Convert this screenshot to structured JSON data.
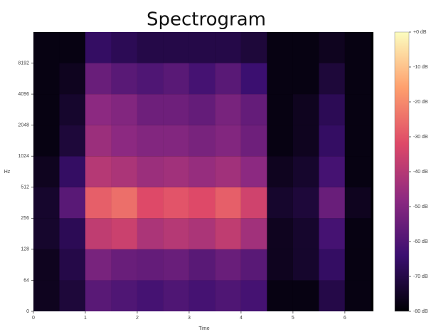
{
  "chart_data": {
    "type": "heatmap",
    "title": "Spectrogram",
    "x_label": "Time",
    "y_label": "Hz",
    "time_bins": [
      0,
      0.5,
      1,
      1.5,
      2,
      2.5,
      3,
      3.5,
      4,
      4.5,
      5,
      5.5,
      6,
      6.5
    ],
    "freq_bins": [
      0,
      64,
      128,
      256,
      512,
      1024,
      2048,
      4096,
      8192,
      16384
    ],
    "z": [
      [
        -76,
        -72,
        -58,
        -60,
        -62,
        -60,
        -62,
        -60,
        -62,
        -78,
        -78,
        -70,
        -78
      ],
      [
        -76,
        -70,
        -52,
        -55,
        -56,
        -55,
        -58,
        -55,
        -58,
        -76,
        -74,
        -66,
        -78
      ],
      [
        -74,
        -68,
        -38,
        -36,
        -42,
        -40,
        -42,
        -38,
        -44,
        -76,
        -74,
        -62,
        -78
      ],
      [
        -74,
        -58,
        -28,
        -25,
        -32,
        -30,
        -32,
        -28,
        -35,
        -74,
        -72,
        -55,
        -76
      ],
      [
        -76,
        -66,
        -40,
        -42,
        -45,
        -44,
        -46,
        -44,
        -48,
        -76,
        -74,
        -62,
        -78
      ],
      [
        -78,
        -72,
        -45,
        -48,
        -50,
        -50,
        -52,
        -50,
        -54,
        -78,
        -76,
        -66,
        -78
      ],
      [
        -78,
        -74,
        -48,
        -50,
        -54,
        -54,
        -56,
        -52,
        -56,
        -78,
        -76,
        -68,
        -78
      ],
      [
        -78,
        -76,
        -55,
        -58,
        -60,
        -58,
        -62,
        -58,
        -64,
        -78,
        -78,
        -72,
        -78
      ],
      [
        -78,
        -78,
        -66,
        -68,
        -70,
        -70,
        -70,
        -70,
        -72,
        -78,
        -78,
        -76,
        -78
      ]
    ],
    "xlim": [
      0,
      6.55
    ],
    "xticks": [
      0,
      1,
      2,
      3,
      4,
      5,
      6
    ],
    "ylim": [
      0,
      16384
    ],
    "yticks": [
      0,
      64,
      128,
      256,
      512,
      1024,
      2048,
      4096,
      8192
    ],
    "y_scale": "symlog2",
    "clim": [
      -80,
      0
    ],
    "cticks": [
      {
        "value": 0,
        "label": "+0 dB"
      },
      {
        "value": -10,
        "label": "-10 dB"
      },
      {
        "value": -20,
        "label": "-20 dB"
      },
      {
        "value": -30,
        "label": "-30 dB"
      },
      {
        "value": -40,
        "label": "-40 dB"
      },
      {
        "value": -50,
        "label": "-50 dB"
      },
      {
        "value": -60,
        "label": "-60 dB"
      },
      {
        "value": -70,
        "label": "-70 dB"
      },
      {
        "value": -80,
        "label": "-80 dB"
      }
    ],
    "colormap": [
      "#000004",
      "#3b0f70",
      "#8c2981",
      "#de4968",
      "#fe9f6d",
      "#fcfdbf"
    ]
  }
}
